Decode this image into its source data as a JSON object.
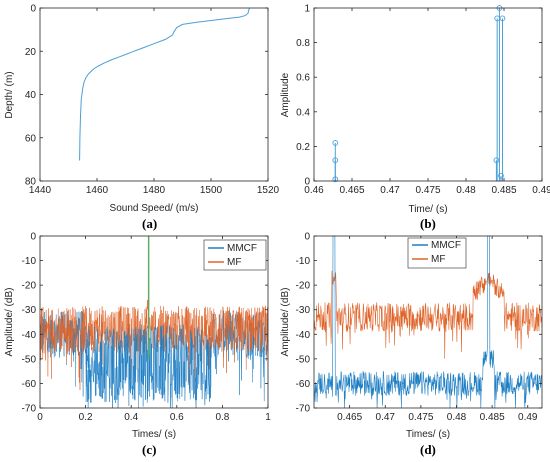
{
  "chart_data": [
    {
      "id": "a",
      "type": "line",
      "caption": "(a)",
      "xlabel": "Sound Speed/ (m/s)",
      "ylabel": "Depth/ (m)",
      "xlim": [
        1440,
        1520
      ],
      "ylim": [
        0,
        80
      ],
      "y_reversed": true,
      "xticks": [
        "1440",
        "1460",
        "1480",
        "1500",
        "1520"
      ],
      "yticks": [
        "0",
        "20",
        "40",
        "60",
        "80"
      ],
      "grid": false,
      "color": "#4a9fd8",
      "series": [
        {
          "x": [
            1513.5,
            1513.2,
            1513.0,
            1512.0,
            1510.0,
            1505.0,
            1500.0,
            1495.0,
            1490.0,
            1488.0,
            1487.0,
            1486.5,
            1484.0,
            1480.0,
            1476.0,
            1472.0,
            1468.0,
            1465.0,
            1462.5,
            1460.5,
            1459.0,
            1458.0,
            1457.0,
            1456.2,
            1455.5,
            1455.0,
            1454.5,
            1454.2,
            1454.0,
            1453.9
          ],
          "y": [
            0,
            1.2,
            2.5,
            3.5,
            4.2,
            5.0,
            5.8,
            6.6,
            7.6,
            9.0,
            11.0,
            12.5,
            14.5,
            16.5,
            18.5,
            20.5,
            22.5,
            24.0,
            25.5,
            26.8,
            28.0,
            29.2,
            30.5,
            32.0,
            34.0,
            37.0,
            42.0,
            50.0,
            60.0,
            70.5
          ]
        }
      ]
    },
    {
      "id": "b",
      "type": "stem",
      "caption": "(b)",
      "xlabel": "Time/ (s)",
      "ylabel": "Amplitude",
      "xlim": [
        0.46,
        0.49
      ],
      "ylim": [
        0,
        1
      ],
      "xticks": [
        "0.46",
        "0.465",
        "0.47",
        "0.475",
        "0.48",
        "0.485",
        "0.49"
      ],
      "yticks": [
        "0",
        "0.2",
        "0.4",
        "0.6",
        "0.8",
        "1"
      ],
      "grid": false,
      "color": "#4a9fd8",
      "series": [
        {
          "x": [
            0.4628,
            0.4628,
            0.4628,
            0.484,
            0.4841,
            0.4844,
            0.4846,
            0.4848
          ],
          "y": [
            0.22,
            0.12,
            0.01,
            0.12,
            0.94,
            1.0,
            0.03,
            0.94
          ]
        }
      ]
    },
    {
      "id": "c",
      "type": "line",
      "caption": "(c)",
      "xlabel": "Times/ (s)",
      "ylabel": "Amplitude/ (dB)",
      "xlim": [
        0,
        1
      ],
      "ylim": [
        -70,
        0
      ],
      "xticks": [
        "0",
        "0.2",
        "0.4",
        "0.6",
        "0.8",
        "1"
      ],
      "yticks": [
        "0",
        "-10",
        "-20",
        "-30",
        "-40",
        "-50",
        "-60",
        "-70"
      ],
      "grid": false,
      "legend": "top-right",
      "series": [
        {
          "name": "MMCF",
          "color": "#1f7fc4",
          "peaks": [
            0.465,
            0.4845
          ],
          "segments": [
            [
              0,
              0.2,
              -40,
              6
            ],
            [
              0.2,
              0.75,
              -52,
              10
            ],
            [
              0.75,
              1,
              -40,
              6
            ]
          ]
        },
        {
          "name": "MF",
          "color": "#e0642a",
          "peaks": [
            0.465,
            0.4845
          ],
          "segments": [
            [
              0,
              1,
              -38,
              6
            ]
          ]
        }
      ]
    },
    {
      "id": "d",
      "type": "line",
      "caption": "(d)",
      "xlabel": "Times/ (s)",
      "ylabel": "Amplitude/ (dB)",
      "xlim": [
        0.46,
        0.492
      ],
      "ylim": [
        -70,
        0
      ],
      "xticks": [
        "0.465",
        "0.47",
        "0.475",
        "0.48",
        "0.485",
        "0.49"
      ],
      "yticks": [
        "0",
        "-10",
        "-20",
        "-30",
        "-40",
        "-50",
        "-60",
        "-70"
      ],
      "grid": false,
      "legend": "top-center",
      "series": [
        {
          "name": "MMCF",
          "color": "#1f7fc4",
          "base": -60,
          "spread": 5,
          "peaks": [
            0.4628,
            0.4845
          ]
        },
        {
          "name": "MF",
          "color": "#e0642a",
          "base": -33,
          "spread": 6,
          "peaks": [
            0.4628,
            0.4845
          ]
        }
      ]
    }
  ]
}
